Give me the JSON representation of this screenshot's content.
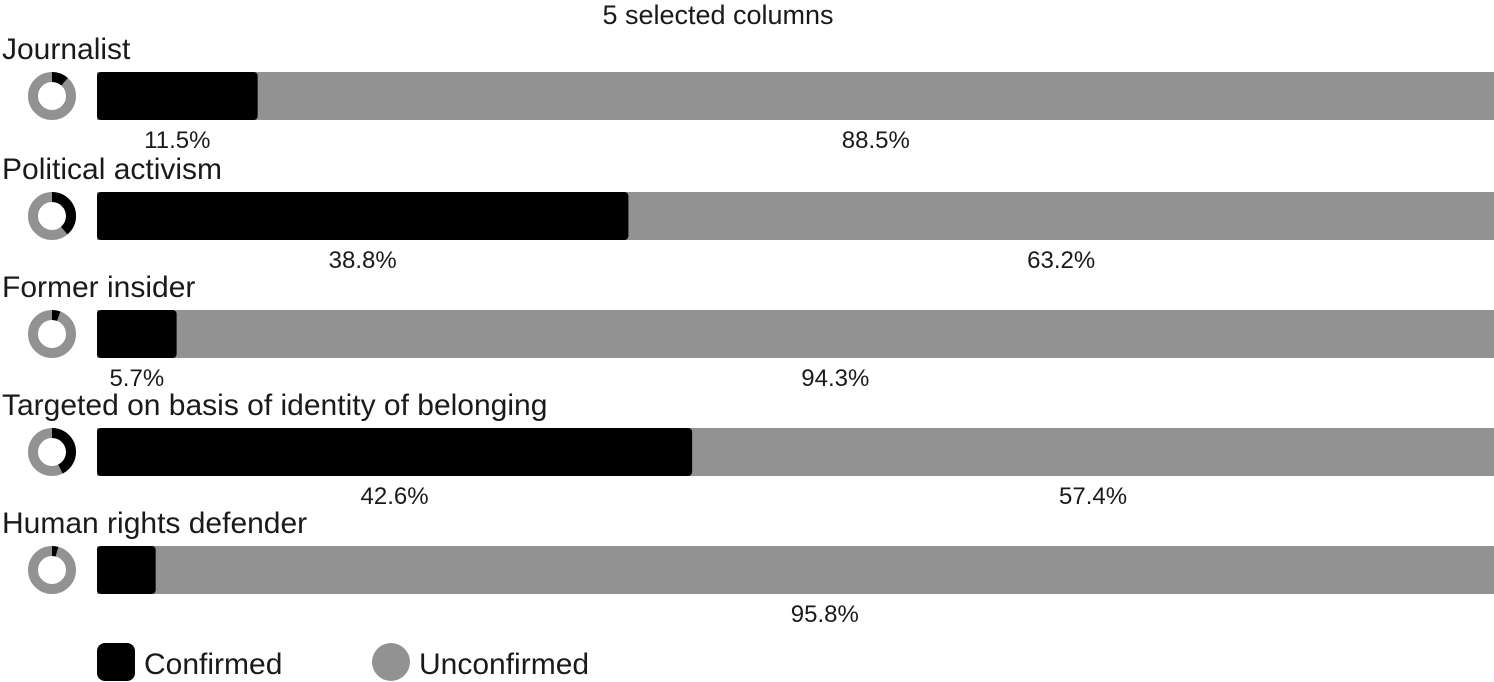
{
  "chart_data": {
    "type": "bar",
    "stacked": true,
    "orientation": "horizontal",
    "title": "5 selected columns",
    "categories": [
      "Journalist",
      "Political activism",
      "Former insider",
      "Targeted on basis of identity of belonging",
      "Human rights defender"
    ],
    "series": [
      {
        "name": "Confirmed",
        "color": "#000000",
        "values": [
          11.5,
          38.8,
          5.7,
          42.6,
          4.2
        ],
        "labels": [
          "11.5%",
          "38.8%",
          "5.7%",
          "42.6%",
          ""
        ]
      },
      {
        "name": "Unconfirmed",
        "color": "#929292",
        "values": [
          88.5,
          63.2,
          94.3,
          57.4,
          95.8
        ],
        "labels": [
          "88.5%",
          "63.2%",
          "94.3%",
          "57.4%",
          "95.8%"
        ]
      }
    ],
    "xlim": [
      0,
      100
    ],
    "legend": "bottom-left",
    "grid": false
  }
}
